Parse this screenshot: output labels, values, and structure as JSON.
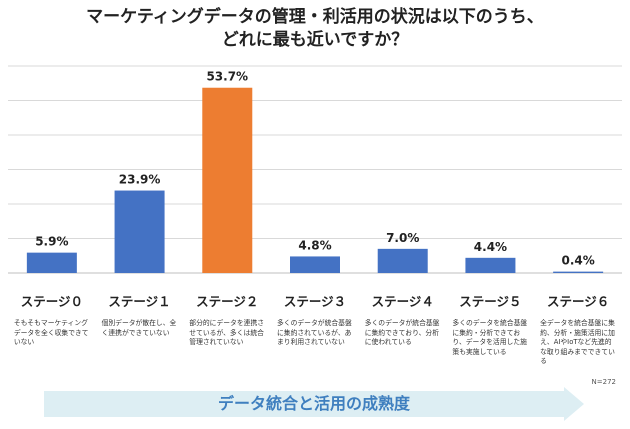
{
  "title": {
    "line1": "マーケティングデータの管理・利活用の状況は以下のうち、",
    "line2": "どれに最も近いですか？"
  },
  "chart_data": {
    "type": "bar",
    "categories": [
      "ステージ０",
      "ステージ１",
      "ステージ２",
      "ステージ３",
      "ステージ４",
      "ステージ５",
      "ステージ６"
    ],
    "values": [
      5.9,
      23.9,
      53.7,
      4.8,
      7.0,
      4.4,
      0.4
    ],
    "value_labels": [
      "5.9%",
      "23.9%",
      "53.7%",
      "4.8%",
      "7.0%",
      "4.4%",
      "0.4%"
    ],
    "descriptions": [
      "そもそもマーケティングデータを全く収集できていない",
      "個別データが散在し、全く連携ができていない",
      "部分的にデータを連携させているが、多くは統合管理されていない",
      "多くのデータが統合基盤に集約されているが、あまり利用されていない",
      "多くのデータが統合基盤に集約できており、分析に使われている",
      "多くのデータを統合基盤に集約・分析できており、データを活用した施策も実施している",
      "全データを統合基盤に集約、分析・施策活用に加え、AIやIoTなど先進的な取り組みまでできている"
    ],
    "ylim": [
      0,
      60
    ],
    "grid": true,
    "highlight_index": 2
  },
  "colors": {
    "bar": "#4472c4",
    "highlight": "#ed7d31",
    "gridline": "#d9d9d9",
    "arrow_band": "#ddeef3",
    "arrow_text": "#3f7fbf"
  },
  "footer": {
    "n_label": "N=272",
    "arrow_label": "データ統合と活用の成熟度"
  }
}
